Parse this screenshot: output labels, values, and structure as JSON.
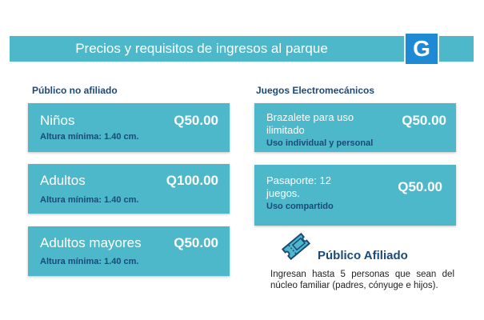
{
  "header": {
    "title": "Precios y requisitos de ingresos al parque",
    "logo_letter": "G"
  },
  "left_section": {
    "title": "Público no afiliado",
    "cards": [
      {
        "name": "Niños",
        "price": "Q50.00",
        "note": "Altura mínima: 1.40 cm."
      },
      {
        "name": "Adultos",
        "price": "Q100.00",
        "note": "Altura mínima: 1.40 cm."
      },
      {
        "name": "Adultos mayores",
        "price": "Q50.00",
        "note": "Altura mínima: 1.40 cm."
      }
    ]
  },
  "right_section": {
    "title": "Juegos Electromecánicos",
    "cards": [
      {
        "name_line1": "Brazalete para uso",
        "name_line2": "ilimitado",
        "price": "Q50.00",
        "note": "Uso individual y personal"
      },
      {
        "name_line1": "Pasaporte: 12",
        "name_line2": "juegos.",
        "price": "Q50.00",
        "note": "Uso compartido"
      }
    ]
  },
  "afiliado": {
    "title": "Público Afiliado",
    "text": "Ingresan hasta 5 personas que sean del núcleo familiar (padres, cónyuge e hijos)."
  },
  "colors": {
    "card": "#4cb8c9",
    "accent_text": "#1b4a7a",
    "logo": "#1e8ad6"
  }
}
